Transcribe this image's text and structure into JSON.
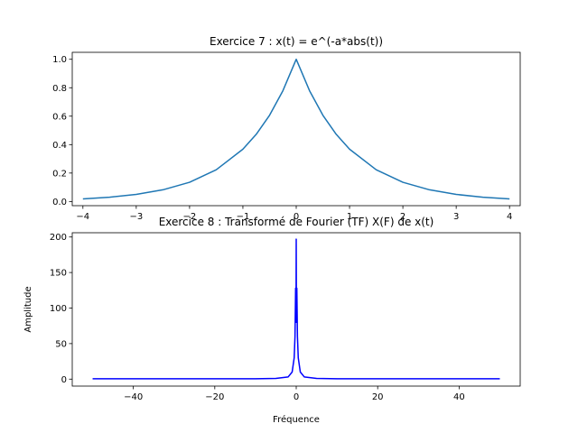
{
  "chart_data": [
    {
      "type": "line",
      "title": "Exercice 7 : x(t) = e^(-a*abs(t))",
      "xlabel": "",
      "ylabel": "",
      "xlim": [
        -4.2,
        4.2
      ],
      "ylim": [
        -0.0294,
        1.049
      ],
      "xticks": [
        -4,
        -3,
        -2,
        -1,
        0,
        1,
        2,
        3,
        4
      ],
      "yticks": [
        0.0,
        0.2,
        0.4,
        0.6,
        0.8,
        1.0
      ],
      "ytick_labels": [
        "0.0",
        "0.2",
        "0.4",
        "0.6",
        "0.8",
        "1.0"
      ],
      "color": "#1f77b4",
      "grid": false,
      "series": [
        {
          "x": [
            -4,
            -3.5,
            -3,
            -2.5,
            -2,
            -1.5,
            -1,
            -0.75,
            -0.5,
            -0.25,
            0,
            0.25,
            0.5,
            0.75,
            1,
            1.5,
            2,
            2.5,
            3,
            3.5,
            4
          ],
          "y": [
            0.0183,
            0.0302,
            0.0498,
            0.0821,
            0.1353,
            0.2231,
            0.3679,
            0.4724,
            0.6065,
            0.7788,
            1.0,
            0.7788,
            0.6065,
            0.4724,
            0.3679,
            0.2231,
            0.1353,
            0.0821,
            0.0498,
            0.0302,
            0.0183
          ]
        }
      ]
    },
    {
      "type": "line",
      "title": "Exercice 8 : Transformé de Fourier (TF) X(F) de x(t)",
      "xlabel": "Fréquence",
      "ylabel": "Amplitude",
      "xlim": [
        -55,
        55
      ],
      "ylim": [
        -9.8,
        206
      ],
      "xticks": [
        -40,
        -20,
        0,
        20,
        40
      ],
      "yticks": [
        0,
        50,
        100,
        150,
        200
      ],
      "color": "#0000ff",
      "grid": false,
      "series": [
        {
          "x": [
            -50,
            -10,
            -5,
            -2,
            -1,
            -0.5,
            -0.3,
            -0.15,
            -0.05,
            0,
            0.05,
            0.15,
            0.3,
            0.5,
            1,
            2,
            5,
            10,
            50
          ],
          "y": [
            0.5,
            0.5,
            1,
            3,
            10,
            30,
            60,
            128,
            80,
            197,
            80,
            128,
            60,
            30,
            10,
            3,
            1,
            0.5,
            0.5
          ]
        }
      ]
    }
  ]
}
